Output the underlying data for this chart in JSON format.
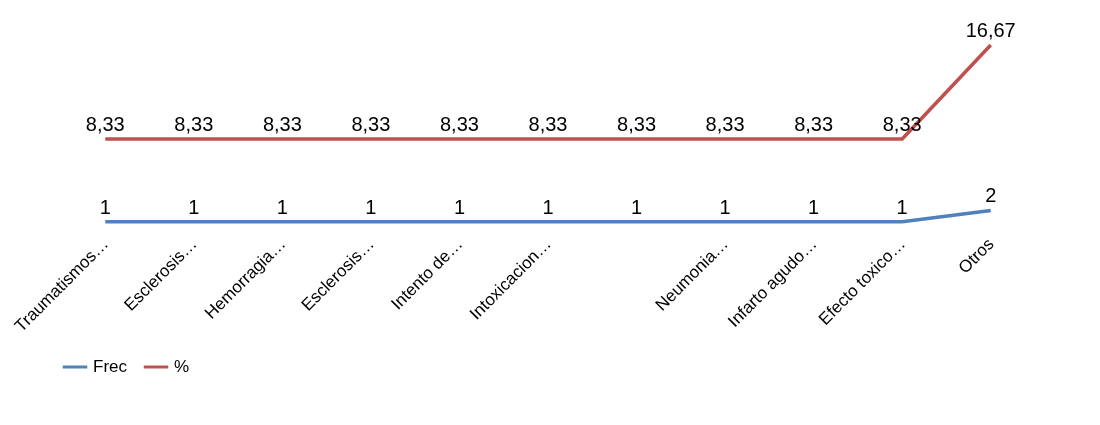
{
  "chart_data": {
    "type": "line",
    "categories": [
      "Traumatismos…",
      "Esclerosis…",
      "Hemorragia…",
      "Esclerosis…",
      "Intento de…",
      "Intoxicacion…",
      null,
      "Neumonia…",
      "Infarto agudo…",
      "Efecto toxico…",
      "Otros"
    ],
    "series": [
      {
        "name": "Frec",
        "color": "#4f81bd",
        "values": [
          1,
          1,
          1,
          1,
          1,
          1,
          1,
          1,
          1,
          1,
          2
        ],
        "value_labels": [
          "1",
          "1",
          "1",
          "1",
          "1",
          "1",
          "1",
          "1",
          "1",
          "1",
          "2"
        ]
      },
      {
        "name": "%",
        "color": "#c0504d",
        "values": [
          8.33,
          8.33,
          8.33,
          8.33,
          8.33,
          8.33,
          8.33,
          8.33,
          8.33,
          8.33,
          16.67
        ],
        "value_labels": [
          "8,33",
          "8,33",
          "8,33",
          "8,33",
          "8,33",
          "8,33",
          "8,33",
          "8,33",
          "8,33",
          "8,33",
          "16,67"
        ]
      }
    ],
    "legend": "bottom",
    "grid": false,
    "marker": "none",
    "line_style": "solid"
  }
}
